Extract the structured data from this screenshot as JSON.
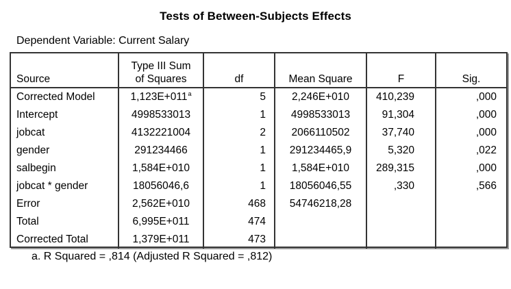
{
  "title": "Tests of Between-Subjects Effects",
  "dependent_variable": "Dependent Variable: Current Salary",
  "table": {
    "columns": [
      "Source",
      "Type III Sum of Squares",
      "df",
      "Mean Square",
      "F",
      "Sig."
    ],
    "header_lines": {
      "ss_line1": "Type III Sum",
      "ss_line2": "of Squares"
    },
    "rows": [
      {
        "source": "Corrected Model",
        "ss": "1,123E+011",
        "ss_footnote": "a",
        "df": "5",
        "ms": "2,246E+010",
        "f": "410,239",
        "sig": ",000"
      },
      {
        "source": "Intercept",
        "ss": "4998533013",
        "ss_footnote": "",
        "df": "1",
        "ms": "4998533013",
        "f": "91,304",
        "sig": ",000"
      },
      {
        "source": "jobcat",
        "ss": "4132221004",
        "ss_footnote": "",
        "df": "2",
        "ms": "2066110502",
        "f": "37,740",
        "sig": ",000"
      },
      {
        "source": "gender",
        "ss": "291234466",
        "ss_footnote": "",
        "df": "1",
        "ms": "291234465,9",
        "f": "5,320",
        "sig": ",022"
      },
      {
        "source": "salbegin",
        "ss": "1,584E+010",
        "ss_footnote": "",
        "df": "1",
        "ms": "1,584E+010",
        "f": "289,315",
        "sig": ",000"
      },
      {
        "source": "jobcat * gender",
        "ss": "18056046,6",
        "ss_footnote": "",
        "df": "1",
        "ms": "18056046,55",
        "f": ",330",
        "sig": ",566"
      },
      {
        "source": "Error",
        "ss": "2,562E+010",
        "ss_footnote": "",
        "df": "468",
        "ms": "54746218,28",
        "f": "",
        "sig": ""
      },
      {
        "source": "Total",
        "ss": "6,995E+011",
        "ss_footnote": "",
        "df": "474",
        "ms": "",
        "f": "",
        "sig": ""
      },
      {
        "source": "Corrected Total",
        "ss": "1,379E+011",
        "ss_footnote": "",
        "df": "473",
        "ms": "",
        "f": "",
        "sig": ""
      }
    ]
  },
  "footnote": "a. R Squared = ,814 (Adjusted R Squared = ,812)"
}
